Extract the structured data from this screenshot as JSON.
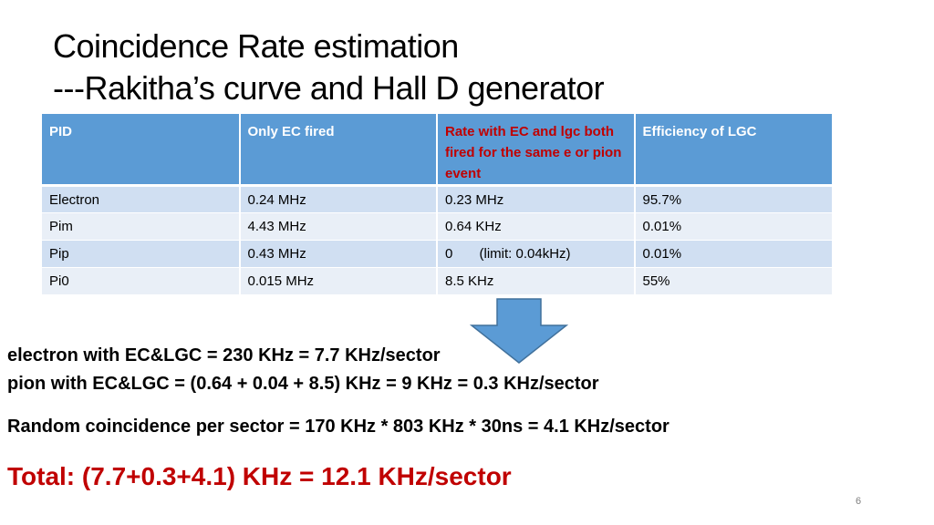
{
  "slide": {
    "title_line1": "Coincidence Rate estimation",
    "title_line2": "---Rakitha’s curve and Hall D generator",
    "page_number": "6"
  },
  "table": {
    "headers": [
      "PID",
      "Only EC fired",
      "Rate with EC and lgc both fired for the same e or pion event",
      "Efficiency of LGC"
    ],
    "rows": [
      [
        "Electron",
        "0.24 MHz",
        "0.23 MHz",
        "95.7%"
      ],
      [
        "Pim",
        "4.43 MHz",
        "0.64 KHz",
        "0.01%"
      ],
      [
        "Pip",
        "0.43 MHz",
        "0       (limit: 0.04kHz)",
        "0.01%"
      ],
      [
        "Pi0",
        "0.015 MHz",
        "8.5 KHz",
        "55%"
      ]
    ]
  },
  "notes": {
    "line1": "electron with EC&LGC = 230 KHz =  7.7 KHz/sector",
    "line2": "pion with EC&LGC = (0.64 + 0.04 + 8.5) KHz = 9 KHz = 0.3 KHz/sector",
    "line3": "Random coincidence per sector = 170 KHz * 803 KHz * 30ns = 4.1 KHz/sector",
    "total": "Total: (7.7+0.3+4.1) KHz = 12.1 KHz/sector"
  },
  "colors": {
    "header_bg": "#5b9bd5",
    "row_odd": "#d0dff2",
    "row_even": "#e9eff7",
    "accent_red": "#c00000",
    "arrow_fill": "#5b9bd5"
  },
  "icons": {
    "arrow": "down-arrow-icon"
  }
}
